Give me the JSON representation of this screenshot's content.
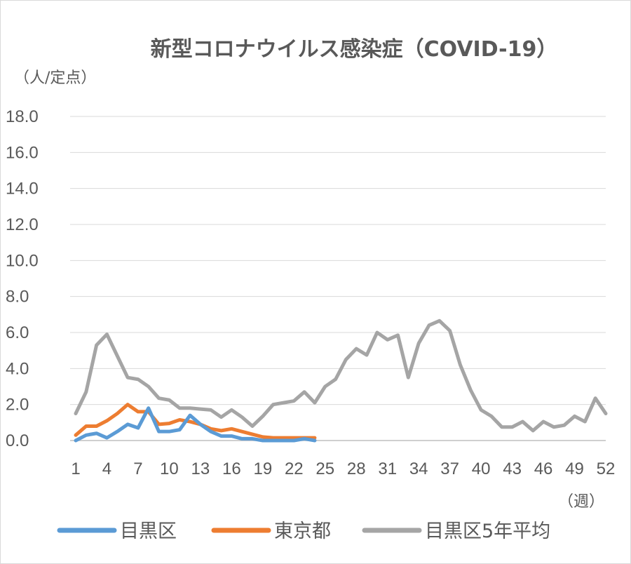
{
  "chart_data": {
    "type": "line",
    "title": "新型コロナウイルス感染症（COVID-19）",
    "ylabel": "（人/定点）",
    "xlabel": "（週）",
    "ylim": [
      0,
      18
    ],
    "y_ticks": [
      "0.0",
      "2.0",
      "4.0",
      "6.0",
      "8.0",
      "10.0",
      "12.0",
      "14.0",
      "16.0",
      "18.0"
    ],
    "xlim": [
      1,
      52
    ],
    "x_ticks": [
      "1",
      "4",
      "7",
      "10",
      "13",
      "16",
      "19",
      "22",
      "25",
      "28",
      "31",
      "34",
      "37",
      "40",
      "43",
      "46",
      "49",
      "52"
    ],
    "grid": true,
    "legend_position": "bottom",
    "series": [
      {
        "name": "目黒区",
        "color": "#5b9bd5",
        "values": [
          0.0,
          0.3,
          0.4,
          0.15,
          0.5,
          0.9,
          0.7,
          1.8,
          0.5,
          0.5,
          0.6,
          1.4,
          0.9,
          0.5,
          0.25,
          0.25,
          0.1,
          0.1,
          0.0,
          0.0,
          0.0,
          0.0,
          0.1,
          0.0
        ]
      },
      {
        "name": "東京都",
        "color": "#ed7d31",
        "values": [
          0.3,
          0.8,
          0.8,
          1.1,
          1.5,
          2.0,
          1.6,
          1.6,
          0.9,
          0.95,
          1.15,
          1.05,
          0.9,
          0.65,
          0.55,
          0.65,
          0.5,
          0.35,
          0.2,
          0.15,
          0.15,
          0.15,
          0.15,
          0.15
        ]
      },
      {
        "name": "目黒区5年平均",
        "color": "#a5a5a5",
        "values": [
          1.5,
          2.7,
          5.3,
          5.9,
          4.7,
          3.5,
          3.4,
          3.0,
          2.35,
          2.25,
          1.8,
          1.8,
          1.75,
          1.7,
          1.3,
          1.7,
          1.3,
          0.8,
          1.35,
          2.0,
          2.1,
          2.2,
          2.7,
          2.1,
          3.0,
          3.4,
          4.5,
          5.1,
          4.75,
          6.0,
          5.6,
          5.85,
          3.5,
          5.4,
          6.4,
          6.65,
          6.1,
          4.2,
          2.8,
          1.7,
          1.35,
          0.75,
          0.75,
          1.05,
          0.55,
          1.05,
          0.75,
          0.85,
          1.35,
          1.05,
          2.35,
          1.5
        ]
      }
    ]
  }
}
